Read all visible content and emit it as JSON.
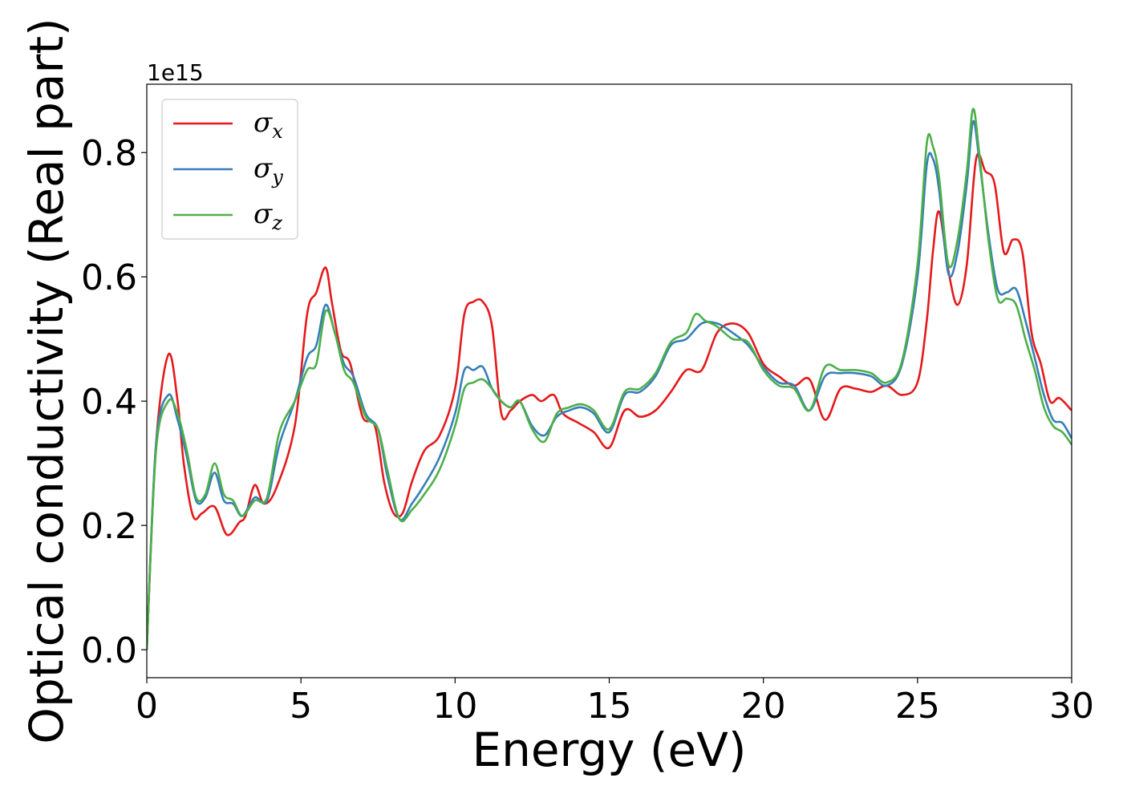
{
  "chart_data": {
    "type": "line",
    "title": "",
    "xlabel": "Energy (eV)",
    "ylabel": "Optical conductivity (Real part)",
    "y_offset_label": "1e15",
    "xlim": [
      0,
      30
    ],
    "ylim": [
      -0.045,
      0.91
    ],
    "x_ticks": [
      "0",
      "5",
      "10",
      "15",
      "20",
      "25",
      "30"
    ],
    "y_ticks": [
      "0.0",
      "0.2",
      "0.4",
      "0.6",
      "0.8"
    ],
    "grid": false,
    "legend_position": "top-left",
    "colors": {
      "sigma_x": "#e41a1c",
      "sigma_y": "#377eb8",
      "sigma_z": "#4daf4a"
    },
    "series": [
      {
        "name": "σ_x",
        "symbol": "σ",
        "subscript": "x",
        "color": "#e41a1c",
        "x": [
          0,
          0.3,
          0.7,
          1.0,
          1.2,
          1.5,
          1.8,
          2.2,
          2.6,
          3.0,
          3.2,
          3.5,
          3.8,
          4.2,
          4.8,
          5.2,
          5.5,
          5.8,
          6.0,
          6.3,
          6.6,
          7.0,
          7.4,
          7.7,
          8.0,
          8.3,
          8.6,
          9.0,
          9.5,
          10.0,
          10.3,
          10.6,
          10.9,
          11.2,
          11.5,
          11.8,
          12.1,
          12.5,
          12.8,
          13.2,
          13.5,
          14.0,
          14.5,
          15.0,
          15.5,
          16.0,
          16.5,
          17.0,
          17.5,
          18.0,
          18.5,
          19.0,
          19.5,
          20.0,
          20.5,
          21.0,
          21.5,
          22.0,
          22.5,
          23.0,
          23.5,
          24.0,
          24.5,
          25.0,
          25.3,
          25.5,
          25.7,
          26.0,
          26.3,
          26.6,
          26.9,
          27.2,
          27.5,
          27.8,
          28.1,
          28.4,
          28.7,
          29.0,
          29.3,
          29.6,
          30.0
        ],
        "y": [
          0.0,
          0.33,
          0.475,
          0.4,
          0.3,
          0.215,
          0.22,
          0.23,
          0.185,
          0.205,
          0.215,
          0.265,
          0.235,
          0.26,
          0.36,
          0.54,
          0.575,
          0.615,
          0.56,
          0.48,
          0.46,
          0.375,
          0.36,
          0.27,
          0.22,
          0.22,
          0.27,
          0.32,
          0.345,
          0.42,
          0.54,
          0.56,
          0.56,
          0.52,
          0.38,
          0.385,
          0.4,
          0.41,
          0.4,
          0.41,
          0.38,
          0.365,
          0.35,
          0.325,
          0.385,
          0.375,
          0.385,
          0.415,
          0.45,
          0.45,
          0.51,
          0.525,
          0.51,
          0.46,
          0.44,
          0.425,
          0.435,
          0.37,
          0.42,
          0.42,
          0.415,
          0.425,
          0.41,
          0.43,
          0.53,
          0.64,
          0.705,
          0.61,
          0.555,
          0.62,
          0.79,
          0.77,
          0.75,
          0.64,
          0.66,
          0.64,
          0.51,
          0.46,
          0.4,
          0.405,
          0.385
        ]
      },
      {
        "name": "σ_y",
        "symbol": "σ",
        "subscript": "y",
        "color": "#377eb8",
        "x": [
          0,
          0.3,
          0.7,
          1.0,
          1.3,
          1.6,
          1.9,
          2.2,
          2.5,
          2.8,
          3.1,
          3.5,
          3.9,
          4.3,
          4.8,
          5.2,
          5.5,
          5.8,
          6.1,
          6.4,
          6.7,
          7.1,
          7.5,
          7.8,
          8.2,
          8.6,
          9.0,
          9.5,
          10.0,
          10.3,
          10.6,
          10.9,
          11.2,
          11.5,
          11.8,
          12.1,
          12.5,
          12.9,
          13.3,
          13.7,
          14.1,
          14.5,
          15.0,
          15.5,
          16.0,
          16.5,
          17.0,
          17.5,
          18.0,
          18.5,
          19.0,
          19.5,
          20.0,
          20.5,
          21.0,
          21.5,
          22.0,
          22.5,
          23.0,
          23.5,
          24.0,
          24.5,
          25.0,
          25.3,
          25.5,
          25.7,
          26.0,
          26.3,
          26.6,
          26.8,
          27.0,
          27.3,
          27.6,
          27.9,
          28.2,
          28.5,
          28.8,
          29.1,
          29.4,
          29.7,
          30.0
        ],
        "y": [
          0.0,
          0.33,
          0.41,
          0.37,
          0.31,
          0.24,
          0.245,
          0.285,
          0.24,
          0.235,
          0.215,
          0.245,
          0.24,
          0.33,
          0.4,
          0.47,
          0.49,
          0.555,
          0.51,
          0.46,
          0.44,
          0.38,
          0.355,
          0.28,
          0.21,
          0.235,
          0.265,
          0.31,
          0.38,
          0.45,
          0.45,
          0.455,
          0.42,
          0.4,
          0.39,
          0.4,
          0.36,
          0.345,
          0.375,
          0.385,
          0.39,
          0.38,
          0.35,
          0.41,
          0.415,
          0.44,
          0.49,
          0.5,
          0.525,
          0.525,
          0.51,
          0.49,
          0.455,
          0.43,
          0.425,
          0.385,
          0.44,
          0.445,
          0.445,
          0.44,
          0.425,
          0.46,
          0.6,
          0.78,
          0.79,
          0.74,
          0.605,
          0.64,
          0.75,
          0.85,
          0.79,
          0.67,
          0.58,
          0.575,
          0.58,
          0.53,
          0.47,
          0.41,
          0.37,
          0.365,
          0.34
        ]
      },
      {
        "name": "σ_z",
        "symbol": "σ",
        "subscript": "z",
        "color": "#4daf4a",
        "x": [
          0,
          0.3,
          0.7,
          1.0,
          1.3,
          1.6,
          1.9,
          2.2,
          2.5,
          2.8,
          3.1,
          3.5,
          3.9,
          4.3,
          4.8,
          5.2,
          5.5,
          5.8,
          6.1,
          6.4,
          6.7,
          7.1,
          7.5,
          7.8,
          8.2,
          8.6,
          9.0,
          9.5,
          10.0,
          10.3,
          10.6,
          10.9,
          11.2,
          11.5,
          11.8,
          12.1,
          12.5,
          12.9,
          13.3,
          13.7,
          14.1,
          14.5,
          15.0,
          15.5,
          16.0,
          16.5,
          17.0,
          17.5,
          17.8,
          18.1,
          18.5,
          19.0,
          19.5,
          20.0,
          20.5,
          21.0,
          21.5,
          22.0,
          22.5,
          23.0,
          23.5,
          24.0,
          24.5,
          25.0,
          25.3,
          25.5,
          25.7,
          26.0,
          26.3,
          26.6,
          26.8,
          27.0,
          27.3,
          27.6,
          27.9,
          28.2,
          28.5,
          28.8,
          29.1,
          29.4,
          29.7,
          30.0
        ],
        "y": [
          0.0,
          0.32,
          0.4,
          0.38,
          0.32,
          0.245,
          0.25,
          0.3,
          0.25,
          0.24,
          0.215,
          0.24,
          0.245,
          0.35,
          0.4,
          0.45,
          0.46,
          0.545,
          0.51,
          0.45,
          0.43,
          0.375,
          0.355,
          0.29,
          0.21,
          0.225,
          0.25,
          0.29,
          0.36,
          0.42,
          0.43,
          0.435,
          0.42,
          0.4,
          0.39,
          0.4,
          0.355,
          0.335,
          0.38,
          0.39,
          0.395,
          0.385,
          0.355,
          0.415,
          0.42,
          0.445,
          0.495,
          0.51,
          0.54,
          0.53,
          0.52,
          0.5,
          0.495,
          0.45,
          0.425,
          0.42,
          0.385,
          0.455,
          0.45,
          0.45,
          0.445,
          0.43,
          0.465,
          0.62,
          0.815,
          0.81,
          0.76,
          0.62,
          0.66,
          0.77,
          0.87,
          0.8,
          0.66,
          0.565,
          0.565,
          0.555,
          0.5,
          0.45,
          0.39,
          0.36,
          0.35,
          0.33
        ]
      }
    ]
  }
}
